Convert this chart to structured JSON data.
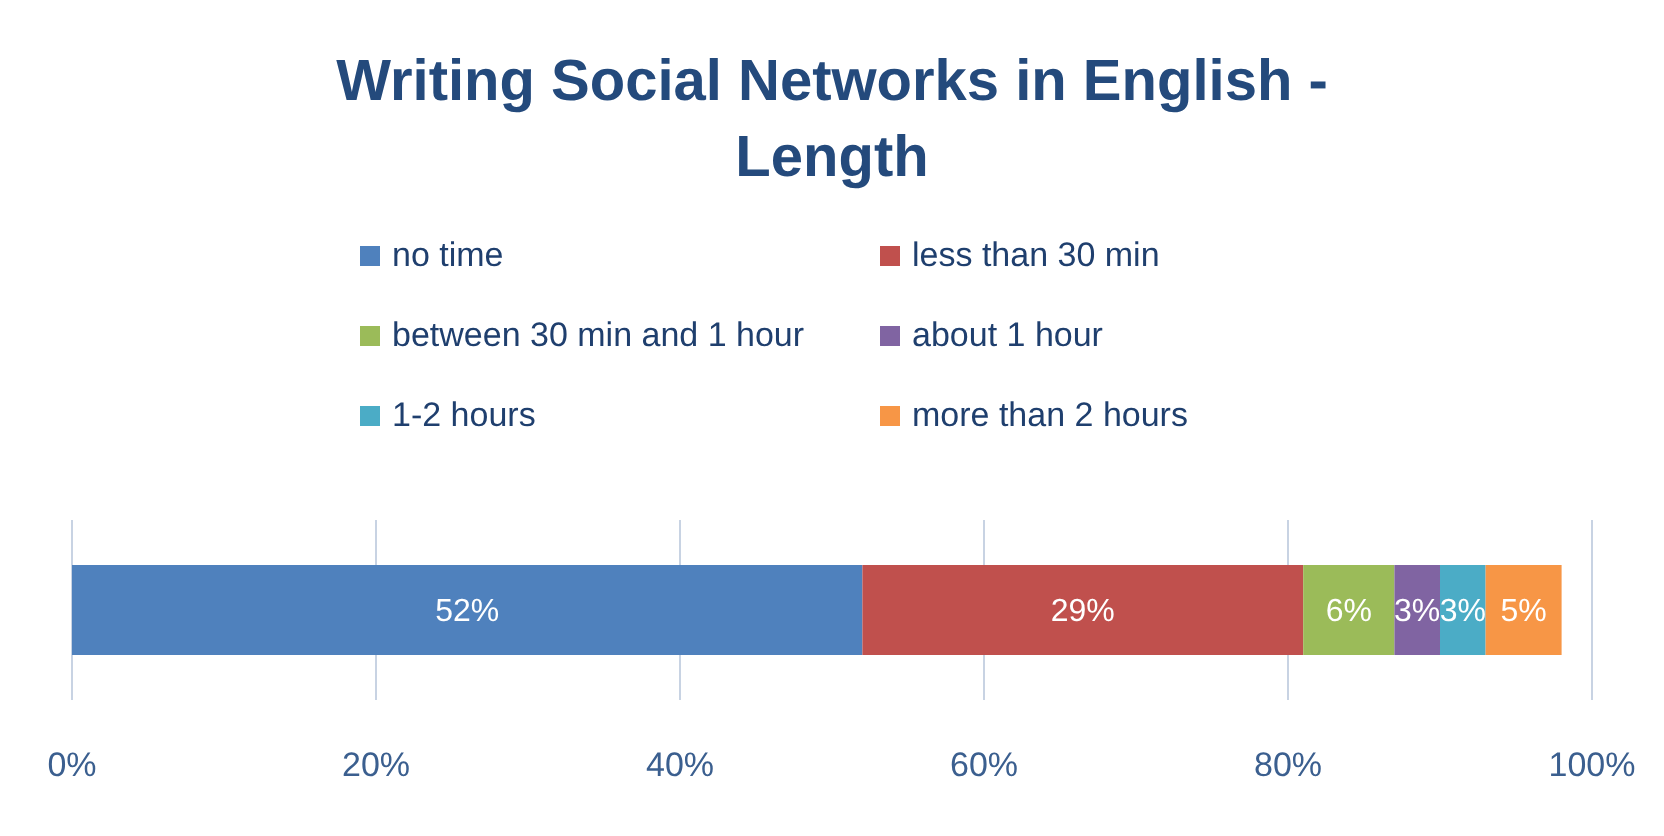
{
  "chart_data": {
    "type": "bar",
    "title": "Writing Social Networks in English - Length",
    "orientation": "horizontal",
    "stacked": true,
    "categories": [
      null
    ],
    "series": [
      {
        "name": "no time",
        "color": "#4f81bd",
        "values": [
          52
        ],
        "value_labels": [
          "52%"
        ]
      },
      {
        "name": "less than 30 min",
        "color": "#c0504d",
        "values": [
          29
        ],
        "value_labels": [
          "29%"
        ]
      },
      {
        "name": "between 30 min and 1 hour",
        "color": "#9bbb59",
        "values": [
          6
        ],
        "value_labels": [
          "6%"
        ]
      },
      {
        "name": "about 1 hour",
        "color": "#8064a2",
        "values": [
          3
        ],
        "value_labels": [
          "3%"
        ]
      },
      {
        "name": "1-2 hours",
        "color": "#4bacc6",
        "values": [
          3
        ],
        "value_labels": [
          "3%"
        ]
      },
      {
        "name": "more than 2 hours",
        "color": "#f79646",
        "values": [
          5
        ],
        "value_labels": [
          "5%"
        ]
      }
    ],
    "xlim": [
      0,
      100
    ],
    "xticks": [
      {
        "value": 0,
        "label": "0%"
      },
      {
        "value": 20,
        "label": "20%"
      },
      {
        "value": 40,
        "label": "40%"
      },
      {
        "value": 60,
        "label": "60%"
      },
      {
        "value": 80,
        "label": "80%"
      },
      {
        "value": 100,
        "label": "100%"
      }
    ],
    "grid": "x",
    "legend": "top"
  }
}
